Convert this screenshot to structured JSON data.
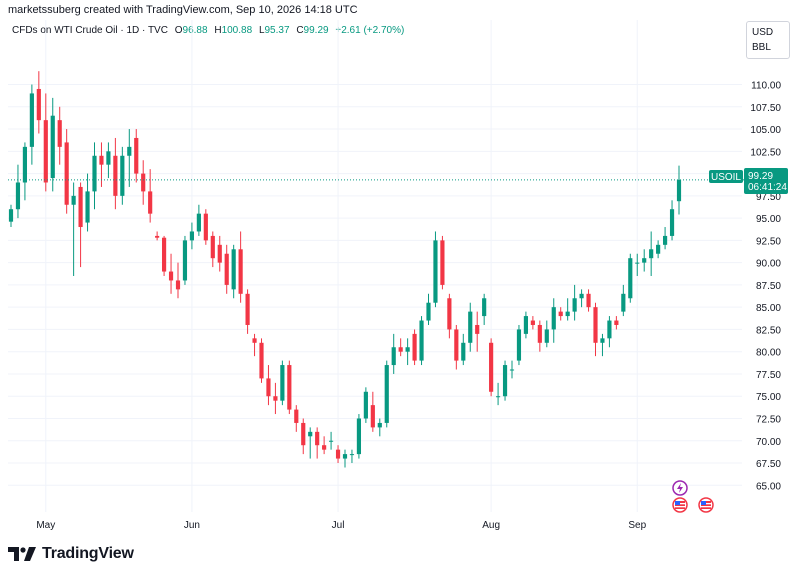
{
  "header": {
    "author_line": "marketssuberg created with TradingView.com, Sep 10, 2026 14:18 UTC"
  },
  "legend": {
    "instrument": "CFDs on WTI Crude Oil · 1D · TVC",
    "o_label": "O",
    "o_value": "96.88",
    "h_label": "H",
    "h_value": "100.88",
    "l_label": "L",
    "l_value": "95.37",
    "c_label": "C",
    "c_value": "99.29",
    "change": "+2.61 (+2.70%)"
  },
  "units": {
    "currency": "USD",
    "unit": "BBL"
  },
  "price_tag": {
    "symbol": "USOIL",
    "price": "99.29",
    "countdown": "06:41:24"
  },
  "logo": {
    "text": "TradingView"
  },
  "colors": {
    "up": "#089981",
    "down": "#f23645",
    "grid": "#f0f3fa",
    "text": "#131722"
  },
  "icons": [
    "lightning-event-icon",
    "us-flag-event-icon",
    "us-flag-event-icon"
  ],
  "chart_data": {
    "type": "candlestick",
    "title": "",
    "ylim": [
      62.0,
      115.0
    ],
    "y_ticks": [
      "110.00",
      "107.50",
      "105.00",
      "102.50",
      "100.00",
      "97.50",
      "95.00",
      "92.50",
      "90.00",
      "87.50",
      "85.00",
      "82.50",
      "80.00",
      "77.50",
      "75.00",
      "72.50",
      "70.00",
      "67.50",
      "65.00"
    ],
    "x_tick_labels": [
      {
        "label": "May",
        "index": 5
      },
      {
        "label": "Jun",
        "index": 26
      },
      {
        "label": "Jul",
        "index": 47
      },
      {
        "label": "Aug",
        "index": 69
      },
      {
        "label": "Sep",
        "index": 90
      }
    ],
    "last_price": 99.29,
    "candles": [
      {
        "o": 94.6,
        "h": 96.5,
        "l": 94.0,
        "c": 96.0
      },
      {
        "o": 96.0,
        "h": 101.0,
        "l": 95.0,
        "c": 99.0
      },
      {
        "o": 99.0,
        "h": 103.5,
        "l": 97.0,
        "c": 103.0
      },
      {
        "o": 103.0,
        "h": 110.0,
        "l": 101.0,
        "c": 109.0
      },
      {
        "o": 109.5,
        "h": 111.5,
        "l": 104.5,
        "c": 106.0
      },
      {
        "o": 106.0,
        "h": 109.0,
        "l": 98.0,
        "c": 99.0
      },
      {
        "o": 99.5,
        "h": 108.5,
        "l": 98.0,
        "c": 106.5
      },
      {
        "o": 106.0,
        "h": 107.5,
        "l": 101.0,
        "c": 103.0
      },
      {
        "o": 103.5,
        "h": 105.0,
        "l": 95.5,
        "c": 96.5
      },
      {
        "o": 96.5,
        "h": 99.0,
        "l": 88.5,
        "c": 97.5
      },
      {
        "o": 98.5,
        "h": 99.0,
        "l": 89.5,
        "c": 94.0
      },
      {
        "o": 94.5,
        "h": 100.0,
        "l": 93.5,
        "c": 98.0
      },
      {
        "o": 98.0,
        "h": 103.5,
        "l": 96.0,
        "c": 102.0
      },
      {
        "o": 102.0,
        "h": 103.5,
        "l": 98.5,
        "c": 101.0
      },
      {
        "o": 101.0,
        "h": 103.5,
        "l": 99.5,
        "c": 102.5
      },
      {
        "o": 102.0,
        "h": 104.0,
        "l": 96.0,
        "c": 97.5
      },
      {
        "o": 97.5,
        "h": 103.0,
        "l": 96.5,
        "c": 102.0
      },
      {
        "o": 102.0,
        "h": 105.0,
        "l": 98.5,
        "c": 103.0
      },
      {
        "o": 104.0,
        "h": 105.0,
        "l": 99.0,
        "c": 100.0
      },
      {
        "o": 100.0,
        "h": 101.5,
        "l": 96.5,
        "c": 98.0
      },
      {
        "o": 98.0,
        "h": 100.5,
        "l": 94.5,
        "c": 95.5
      },
      {
        "o": 93.0,
        "h": 93.5,
        "l": 92.5,
        "c": 92.8
      },
      {
        "o": 92.8,
        "h": 93.0,
        "l": 88.5,
        "c": 89.0
      },
      {
        "o": 89.0,
        "h": 91.0,
        "l": 86.5,
        "c": 88.0
      },
      {
        "o": 88.0,
        "h": 90.0,
        "l": 86.0,
        "c": 87.0
      },
      {
        "o": 88.0,
        "h": 93.0,
        "l": 87.5,
        "c": 92.5
      },
      {
        "o": 92.5,
        "h": 94.5,
        "l": 91.5,
        "c": 93.5
      },
      {
        "o": 93.5,
        "h": 96.5,
        "l": 93.0,
        "c": 95.5
      },
      {
        "o": 95.5,
        "h": 96.0,
        "l": 92.0,
        "c": 92.5
      },
      {
        "o": 93.0,
        "h": 93.5,
        "l": 89.5,
        "c": 90.5
      },
      {
        "o": 92.0,
        "h": 93.0,
        "l": 89.0,
        "c": 90.0
      },
      {
        "o": 91.0,
        "h": 92.0,
        "l": 86.5,
        "c": 87.5
      },
      {
        "o": 87.0,
        "h": 92.0,
        "l": 86.0,
        "c": 91.5
      },
      {
        "o": 91.5,
        "h": 93.5,
        "l": 85.5,
        "c": 86.5
      },
      {
        "o": 86.5,
        "h": 87.0,
        "l": 82.0,
        "c": 83.0
      },
      {
        "o": 81.5,
        "h": 82.0,
        "l": 79.5,
        "c": 81.0
      },
      {
        "o": 81.0,
        "h": 81.5,
        "l": 76.5,
        "c": 77.0
      },
      {
        "o": 77.0,
        "h": 78.5,
        "l": 74.0,
        "c": 75.0
      },
      {
        "o": 75.0,
        "h": 76.5,
        "l": 73.0,
        "c": 74.5
      },
      {
        "o": 74.5,
        "h": 79.0,
        "l": 74.0,
        "c": 78.5
      },
      {
        "o": 78.5,
        "h": 79.0,
        "l": 73.0,
        "c": 73.5
      },
      {
        "o": 73.5,
        "h": 74.0,
        "l": 71.0,
        "c": 72.0
      },
      {
        "o": 72.0,
        "h": 72.5,
        "l": 68.5,
        "c": 69.5
      },
      {
        "o": 70.5,
        "h": 71.5,
        "l": 68.0,
        "c": 71.0
      },
      {
        "o": 71.0,
        "h": 71.5,
        "l": 68.0,
        "c": 69.5
      },
      {
        "o": 69.5,
        "h": 70.5,
        "l": 68.5,
        "c": 69.0
      },
      {
        "o": 70.0,
        "h": 71.0,
        "l": 69.0,
        "c": 70.0
      },
      {
        "o": 69.0,
        "h": 69.5,
        "l": 67.5,
        "c": 68.0
      },
      {
        "o": 68.0,
        "h": 69.0,
        "l": 67.0,
        "c": 68.5
      },
      {
        "o": 68.5,
        "h": 69.0,
        "l": 67.5,
        "c": 68.5
      },
      {
        "o": 68.5,
        "h": 73.0,
        "l": 68.0,
        "c": 72.5
      },
      {
        "o": 72.5,
        "h": 76.0,
        "l": 72.0,
        "c": 75.5
      },
      {
        "o": 74.0,
        "h": 75.5,
        "l": 71.0,
        "c": 71.5
      },
      {
        "o": 71.5,
        "h": 72.5,
        "l": 70.5,
        "c": 72.0
      },
      {
        "o": 72.0,
        "h": 79.0,
        "l": 71.5,
        "c": 78.5
      },
      {
        "o": 78.5,
        "h": 82.0,
        "l": 77.5,
        "c": 80.5
      },
      {
        "o": 80.5,
        "h": 81.5,
        "l": 79.5,
        "c": 80.0
      },
      {
        "o": 80.0,
        "h": 81.5,
        "l": 78.5,
        "c": 80.5
      },
      {
        "o": 82.0,
        "h": 82.5,
        "l": 78.5,
        "c": 79.0
      },
      {
        "o": 79.0,
        "h": 84.0,
        "l": 78.5,
        "c": 83.5
      },
      {
        "o": 83.5,
        "h": 86.5,
        "l": 83.0,
        "c": 85.5
      },
      {
        "o": 85.5,
        "h": 93.5,
        "l": 85.0,
        "c": 92.5
      },
      {
        "o": 92.5,
        "h": 93.0,
        "l": 87.0,
        "c": 87.5
      },
      {
        "o": 86.0,
        "h": 86.5,
        "l": 81.5,
        "c": 82.5
      },
      {
        "o": 82.5,
        "h": 83.0,
        "l": 78.0,
        "c": 79.0
      },
      {
        "o": 79.0,
        "h": 82.0,
        "l": 78.5,
        "c": 81.0
      },
      {
        "o": 81.0,
        "h": 85.5,
        "l": 80.0,
        "c": 84.5
      },
      {
        "o": 83.0,
        "h": 84.5,
        "l": 80.0,
        "c": 82.0
      },
      {
        "o": 84.0,
        "h": 86.5,
        "l": 83.0,
        "c": 86.0
      },
      {
        "o": 81.0,
        "h": 81.5,
        "l": 75.0,
        "c": 75.5
      },
      {
        "o": 75.0,
        "h": 76.5,
        "l": 74.0,
        "c": 75.0
      },
      {
        "o": 75.0,
        "h": 79.0,
        "l": 74.5,
        "c": 78.5
      },
      {
        "o": 78.0,
        "h": 79.0,
        "l": 77.0,
        "c": 78.0
      },
      {
        "o": 79.0,
        "h": 83.0,
        "l": 78.5,
        "c": 82.5
      },
      {
        "o": 82.0,
        "h": 84.5,
        "l": 81.5,
        "c": 84.0
      },
      {
        "o": 83.5,
        "h": 84.0,
        "l": 82.5,
        "c": 83.0
      },
      {
        "o": 83.0,
        "h": 83.5,
        "l": 80.0,
        "c": 81.0
      },
      {
        "o": 81.0,
        "h": 83.5,
        "l": 80.5,
        "c": 82.5
      },
      {
        "o": 82.5,
        "h": 86.0,
        "l": 81.0,
        "c": 85.0
      },
      {
        "o": 84.5,
        "h": 85.0,
        "l": 83.5,
        "c": 84.0
      },
      {
        "o": 84.0,
        "h": 86.0,
        "l": 83.5,
        "c": 84.5
      },
      {
        "o": 84.5,
        "h": 87.5,
        "l": 83.5,
        "c": 86.0
      },
      {
        "o": 86.0,
        "h": 87.0,
        "l": 85.0,
        "c": 86.5
      },
      {
        "o": 86.5,
        "h": 87.0,
        "l": 84.5,
        "c": 85.0
      },
      {
        "o": 85.0,
        "h": 85.5,
        "l": 79.5,
        "c": 81.0
      },
      {
        "o": 81.0,
        "h": 82.0,
        "l": 79.5,
        "c": 81.5
      },
      {
        "o": 81.5,
        "h": 84.0,
        "l": 80.5,
        "c": 83.5
      },
      {
        "o": 83.5,
        "h": 84.0,
        "l": 82.5,
        "c": 83.0
      },
      {
        "o": 84.5,
        "h": 87.5,
        "l": 84.0,
        "c": 86.5
      },
      {
        "o": 86.0,
        "h": 91.0,
        "l": 85.5,
        "c": 90.5
      },
      {
        "o": 90.0,
        "h": 91.0,
        "l": 88.5,
        "c": 90.0
      },
      {
        "o": 90.0,
        "h": 91.5,
        "l": 89.0,
        "c": 90.5
      },
      {
        "o": 90.5,
        "h": 93.5,
        "l": 88.5,
        "c": 91.5
      },
      {
        "o": 91.0,
        "h": 92.5,
        "l": 90.5,
        "c": 92.0
      },
      {
        "o": 92.0,
        "h": 94.0,
        "l": 91.5,
        "c": 93.0
      },
      {
        "o": 93.0,
        "h": 97.0,
        "l": 92.5,
        "c": 96.0
      },
      {
        "o": 96.9,
        "h": 100.9,
        "l": 95.4,
        "c": 99.3
      }
    ]
  }
}
